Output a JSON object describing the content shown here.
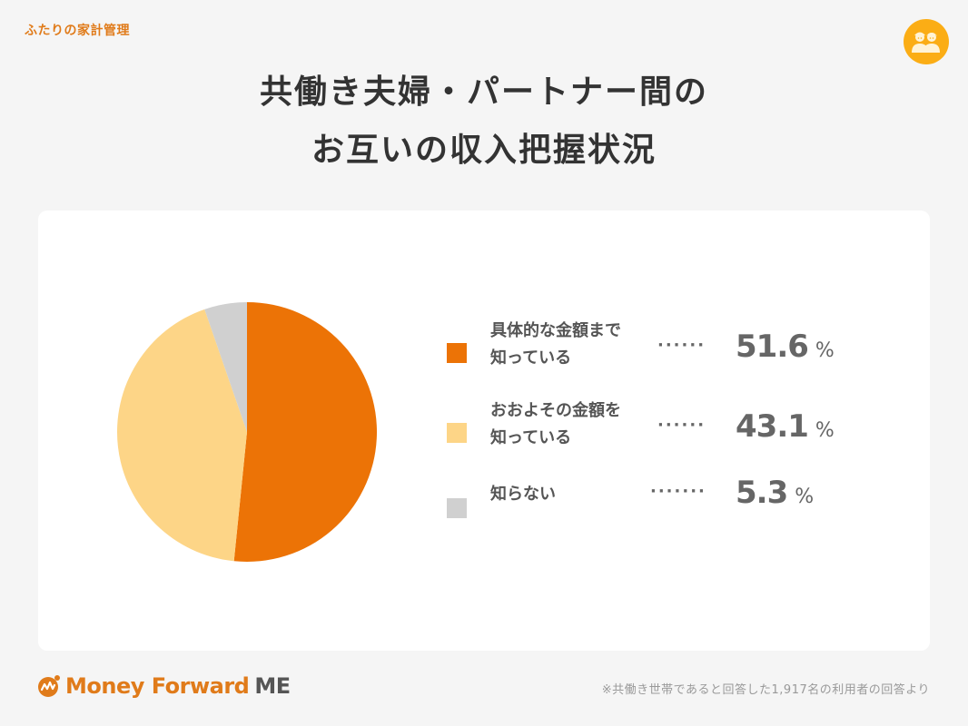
{
  "header": {
    "brand_tag": "ふたりの家計管理",
    "title_line1": "共働き夫婦・パートナー間の",
    "title_line2": "お互いの収入把握状況",
    "badge_icon": "couple-icon"
  },
  "legend": {
    "items": [
      {
        "label": "具体的な金額まで\n知っている",
        "value": "51.6",
        "unit": "%",
        "color": "#ec7306",
        "dots": "······"
      },
      {
        "label": "おおよその金額を\n知っている",
        "value": "43.1",
        "unit": "%",
        "color": "#fdd587",
        "dots": "······"
      },
      {
        "label": "知らない",
        "value": "5.3",
        "unit": "%",
        "color": "#d0d0d0",
        "dots": "·······"
      }
    ]
  },
  "footer": {
    "logo_text": "Money Forward",
    "logo_suffix": "ME",
    "footnote": "※共働き世帯であると回答した1,917名の利用者の回答より"
  },
  "colors": {
    "background": "#f5f5f5",
    "card": "#ffffff",
    "accent": "#e07b1a",
    "badge": "#fbad15"
  },
  "chart_data": {
    "type": "pie",
    "title": "共働き夫婦・パートナー間のお互いの収入把握状況",
    "categories": [
      "具体的な金額まで知っている",
      "おおよその金額を知っている",
      "知らない"
    ],
    "values": [
      51.6,
      43.1,
      5.3
    ],
    "unit": "%",
    "colors": [
      "#ec7306",
      "#fdd587",
      "#d0d0d0"
    ],
    "start_angle": "12 o'clock, clockwise",
    "legend_position": "right",
    "note": "※共働き世帯であると回答した1,917名の利用者の回答より"
  }
}
